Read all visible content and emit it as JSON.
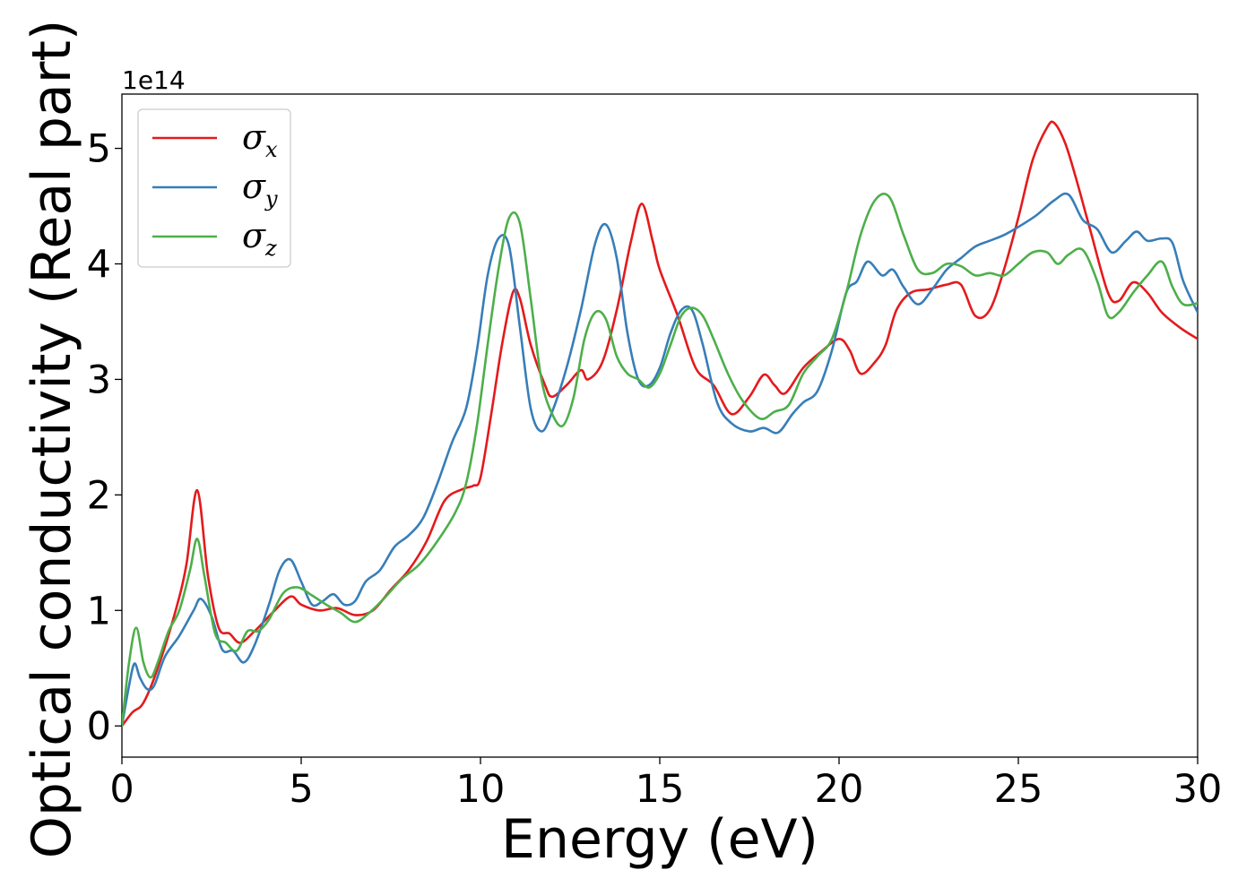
{
  "chart_data": {
    "type": "line",
    "title": "",
    "xlabel": "Energy (eV)",
    "ylabel": "Optical conductivity (Real part)",
    "y_offset_label": "1e14",
    "xlim": [
      0,
      30
    ],
    "ylim": [
      -0.27,
      5.47
    ],
    "x_ticks": [
      0,
      5,
      10,
      15,
      20,
      25,
      30
    ],
    "y_ticks": [
      0,
      1,
      2,
      3,
      4,
      5
    ],
    "grid": false,
    "legend_position": "top-left",
    "series": [
      {
        "name": "σx",
        "symbol": "σ",
        "subscript": "x",
        "color": "#e41a1c",
        "x": [
          0,
          0.3,
          0.6,
          1.0,
          1.5,
          1.8,
          2.1,
          2.4,
          2.7,
          3.0,
          3.3,
          3.7,
          4.2,
          4.7,
          5.0,
          5.5,
          6.0,
          6.5,
          7.0,
          7.5,
          8.0,
          8.5,
          9.0,
          9.5,
          9.8,
          10.0,
          10.3,
          10.6,
          10.9,
          11.1,
          11.4,
          11.8,
          12.0,
          12.4,
          12.8,
          13.0,
          13.4,
          13.8,
          14.2,
          14.5,
          14.8,
          15.0,
          15.5,
          16.0,
          16.5,
          17.0,
          17.5,
          17.9,
          18.2,
          18.5,
          19.0,
          19.5,
          20.0,
          20.3,
          20.6,
          21.0,
          21.3,
          21.6,
          22.0,
          22.5,
          23.0,
          23.4,
          23.8,
          24.2,
          24.6,
          25.0,
          25.4,
          25.8,
          26.0,
          26.3,
          26.6,
          27.0,
          27.5,
          27.8,
          28.2,
          28.6,
          29.0,
          29.5,
          30.0
        ],
        "y": [
          0,
          0.12,
          0.2,
          0.5,
          1.0,
          1.4,
          2.04,
          1.3,
          0.85,
          0.8,
          0.72,
          0.82,
          0.98,
          1.12,
          1.05,
          1.0,
          1.02,
          0.96,
          1.0,
          1.18,
          1.35,
          1.6,
          1.95,
          2.05,
          2.08,
          2.15,
          2.7,
          3.3,
          3.75,
          3.7,
          3.3,
          2.95,
          2.85,
          2.95,
          3.08,
          3.0,
          3.15,
          3.6,
          4.2,
          4.52,
          4.2,
          3.95,
          3.55,
          3.1,
          2.95,
          2.7,
          2.85,
          3.04,
          2.95,
          2.88,
          3.1,
          3.24,
          3.35,
          3.25,
          3.05,
          3.15,
          3.3,
          3.6,
          3.75,
          3.78,
          3.82,
          3.82,
          3.55,
          3.6,
          3.95,
          4.4,
          4.9,
          5.18,
          5.22,
          5.05,
          4.75,
          4.3,
          3.75,
          3.68,
          3.84,
          3.75,
          3.58,
          3.45,
          3.35
        ]
      },
      {
        "name": "σy",
        "symbol": "σ",
        "subscript": "y",
        "color": "#377eb8",
        "x": [
          0,
          0.2,
          0.35,
          0.5,
          0.7,
          0.9,
          1.2,
          1.6,
          2.0,
          2.2,
          2.5,
          2.8,
          3.1,
          3.4,
          3.7,
          4.1,
          4.4,
          4.7,
          5.0,
          5.3,
          5.6,
          5.9,
          6.2,
          6.5,
          6.8,
          7.2,
          7.6,
          8.0,
          8.4,
          8.8,
          9.2,
          9.6,
          9.9,
          10.2,
          10.5,
          10.8,
          11.1,
          11.4,
          11.7,
          12.0,
          12.4,
          12.8,
          13.2,
          13.5,
          13.8,
          14.1,
          14.4,
          14.7,
          15.0,
          15.3,
          15.6,
          15.9,
          16.2,
          16.6,
          17.0,
          17.5,
          17.9,
          18.3,
          18.7,
          19.0,
          19.4,
          19.8,
          20.2,
          20.5,
          20.8,
          21.2,
          21.5,
          21.8,
          22.2,
          22.6,
          23.0,
          23.4,
          23.8,
          24.2,
          24.6,
          25.0,
          25.5,
          26.0,
          26.4,
          26.8,
          27.2,
          27.6,
          28.0,
          28.3,
          28.6,
          29.0,
          29.3,
          29.6,
          30.0
        ],
        "y": [
          0,
          0.35,
          0.54,
          0.42,
          0.32,
          0.35,
          0.6,
          0.78,
          1.0,
          1.1,
          0.95,
          0.66,
          0.65,
          0.55,
          0.7,
          1.05,
          1.35,
          1.44,
          1.25,
          1.05,
          1.08,
          1.14,
          1.05,
          1.08,
          1.25,
          1.35,
          1.55,
          1.65,
          1.8,
          2.1,
          2.45,
          2.75,
          3.25,
          3.9,
          4.22,
          4.15,
          3.45,
          2.75,
          2.55,
          2.72,
          3.1,
          3.6,
          4.18,
          4.34,
          4.05,
          3.4,
          3.0,
          2.95,
          3.1,
          3.4,
          3.6,
          3.6,
          3.3,
          2.8,
          2.62,
          2.55,
          2.58,
          2.54,
          2.7,
          2.8,
          2.9,
          3.25,
          3.75,
          3.85,
          4.02,
          3.9,
          3.95,
          3.8,
          3.65,
          3.78,
          3.95,
          4.05,
          4.15,
          4.2,
          4.25,
          4.32,
          4.42,
          4.55,
          4.6,
          4.38,
          4.3,
          4.1,
          4.2,
          4.28,
          4.2,
          4.22,
          4.18,
          3.85,
          3.58
        ]
      },
      {
        "name": "σz",
        "symbol": "σ",
        "subscript": "z",
        "color": "#4daf4a",
        "x": [
          0,
          0.2,
          0.4,
          0.6,
          0.8,
          1.0,
          1.3,
          1.6,
          1.9,
          2.1,
          2.3,
          2.6,
          2.9,
          3.2,
          3.5,
          3.8,
          4.1,
          4.5,
          4.9,
          5.3,
          5.7,
          6.1,
          6.5,
          6.9,
          7.3,
          7.8,
          8.3,
          8.8,
          9.3,
          9.6,
          9.9,
          10.2,
          10.5,
          10.8,
          11.1,
          11.4,
          11.7,
          12.0,
          12.3,
          12.6,
          12.9,
          13.2,
          13.5,
          13.8,
          14.1,
          14.4,
          14.7,
          15.0,
          15.3,
          15.6,
          15.9,
          16.2,
          16.5,
          16.9,
          17.3,
          17.8,
          18.2,
          18.6,
          19.0,
          19.4,
          19.8,
          20.2,
          20.6,
          21.0,
          21.4,
          21.8,
          22.2,
          22.6,
          23.0,
          23.4,
          23.8,
          24.2,
          24.6,
          25.0,
          25.4,
          25.8,
          26.1,
          26.4,
          26.8,
          27.2,
          27.5,
          27.8,
          28.2,
          28.6,
          29.0,
          29.3,
          29.6,
          30.0
        ],
        "y": [
          0,
          0.55,
          0.85,
          0.55,
          0.42,
          0.55,
          0.82,
          1.0,
          1.35,
          1.62,
          1.3,
          0.8,
          0.72,
          0.65,
          0.82,
          0.82,
          0.92,
          1.15,
          1.2,
          1.13,
          1.05,
          0.98,
          0.9,
          0.98,
          1.1,
          1.27,
          1.4,
          1.6,
          1.85,
          2.1,
          2.6,
          3.3,
          3.95,
          4.4,
          4.35,
          3.7,
          3.0,
          2.7,
          2.6,
          2.85,
          3.35,
          3.58,
          3.52,
          3.2,
          3.05,
          3.0,
          2.93,
          3.05,
          3.3,
          3.55,
          3.62,
          3.55,
          3.35,
          3.05,
          2.82,
          2.66,
          2.72,
          2.78,
          3.05,
          3.2,
          3.35,
          3.75,
          4.25,
          4.55,
          4.58,
          4.25,
          3.95,
          3.92,
          4.0,
          3.98,
          3.9,
          3.92,
          3.9,
          4.0,
          4.1,
          4.1,
          4.0,
          4.08,
          4.12,
          3.85,
          3.55,
          3.58,
          3.75,
          3.9,
          4.02,
          3.8,
          3.65,
          3.66
        ]
      }
    ]
  }
}
